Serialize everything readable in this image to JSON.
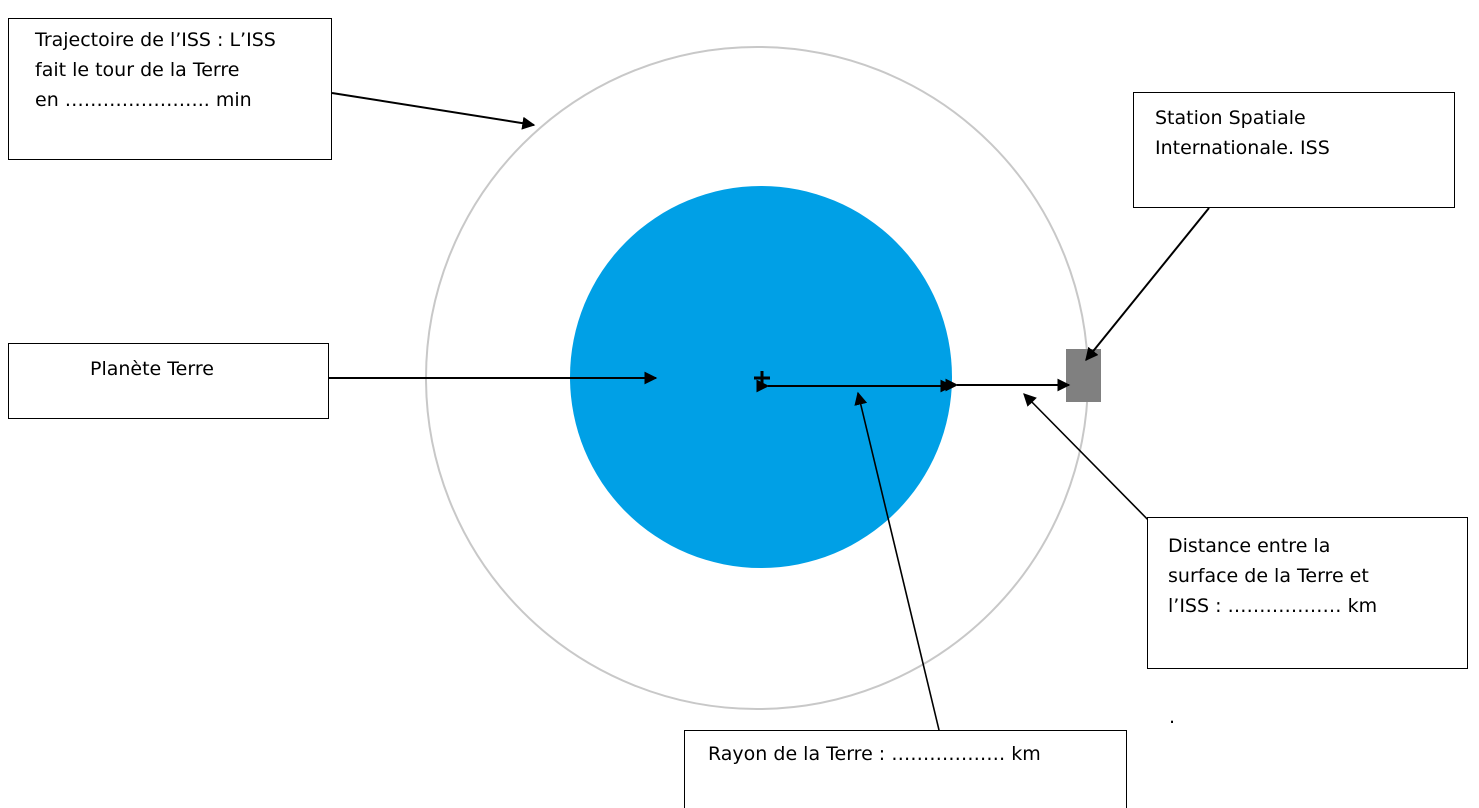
{
  "labels": {
    "trajectoire": {
      "line1": "Trajectoire de l’ISS : L’ISS",
      "line2": "fait le tour de la Terre",
      "line3": "en ………………….. min"
    },
    "station": {
      "line1": "Station Spatiale",
      "line2": "Internationale. ISS"
    },
    "terre": {
      "line1": "Planète Terre"
    },
    "distance": {
      "line1": "Distance entre la",
      "line2": "surface de la Terre et",
      "line3": "l’ISS : ……………… km"
    },
    "rayon": {
      "line1": "Rayon de la Terre : ……………… km"
    },
    "stray_mark": "."
  },
  "colors": {
    "earth": "#00a0e6",
    "orbit": "#c8c8c8",
    "iss": "#808080",
    "line": "#000000"
  }
}
